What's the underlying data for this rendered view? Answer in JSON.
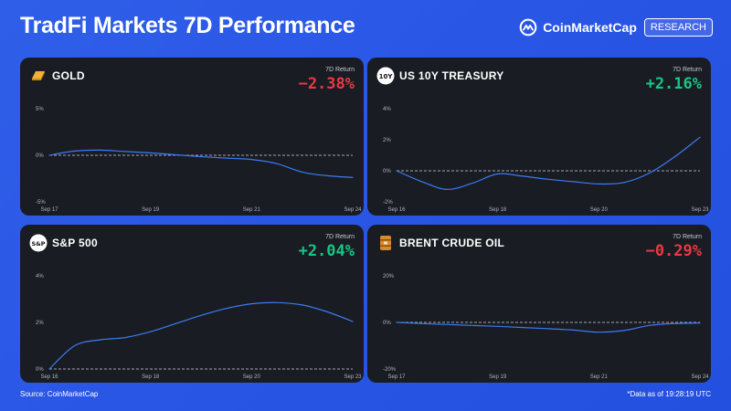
{
  "header": {
    "title": "TradFi Markets 7D Performance",
    "brand_name": "CoinMarketCap",
    "brand_badge": "RESEARCH"
  },
  "footer": {
    "source": "Source: CoinMarketCap",
    "timestamp": "*Data as of 19:28:19 UTC"
  },
  "colors": {
    "line": "#3b7cf4",
    "negative": "#ea3943",
    "positive": "#16c784",
    "panel": "#191c22"
  },
  "panels": [
    {
      "name": "GOLD",
      "icon": "gold-bar-icon",
      "return_label": "7D Return",
      "return_value": "−2.38%"
    },
    {
      "name": "US 10Y TREASURY",
      "icon": "treasury-10y-icon",
      "icon_text": "10Y",
      "return_label": "7D Return",
      "return_value": "+2.16%"
    },
    {
      "name": "S&P 500",
      "icon": "sp500-icon",
      "icon_text": "S&P",
      "return_label": "7D Return",
      "return_value": "+2.04%"
    },
    {
      "name": "BRENT CRUDE OIL",
      "icon": "oil-barrel-icon",
      "return_label": "7D Return",
      "return_value": "−0.29%"
    }
  ],
  "chart_data": [
    {
      "type": "line",
      "title": "GOLD",
      "x_ticks": [
        "Sep 17",
        "Sep 19",
        "Sep 21",
        "Sep 24"
      ],
      "x_tick_pos": [
        0,
        2,
        4,
        6
      ],
      "y_ticks": [
        "5%",
        "0%",
        "-5%"
      ],
      "y_tick_vals": [
        5,
        0,
        -5
      ],
      "ylim": [
        -5,
        5
      ],
      "x": [
        0,
        0.5,
        1,
        1.5,
        2,
        2.5,
        3,
        3.5,
        4,
        4.5,
        5,
        5.5,
        6
      ],
      "y": [
        0.0,
        0.45,
        0.55,
        0.4,
        0.25,
        0.05,
        -0.15,
        -0.3,
        -0.45,
        -0.9,
        -1.8,
        -2.2,
        -2.38
      ],
      "baseline": 0,
      "grid": false
    },
    {
      "type": "line",
      "title": "US 10Y TREASURY",
      "x_ticks": [
        "Sep 16",
        "Sep 18",
        "Sep 20",
        "Sep 23"
      ],
      "x_tick_pos": [
        0,
        2,
        4,
        6
      ],
      "y_ticks": [
        "4%",
        "2%",
        "0%",
        "-2%"
      ],
      "y_tick_vals": [
        4,
        2,
        0,
        -2
      ],
      "ylim": [
        -2,
        4
      ],
      "x": [
        0,
        0.5,
        1,
        1.5,
        2,
        2.5,
        3,
        3.5,
        4,
        4.5,
        5,
        5.5,
        6
      ],
      "y": [
        0.0,
        -0.7,
        -1.2,
        -0.8,
        -0.2,
        -0.35,
        -0.55,
        -0.7,
        -0.85,
        -0.75,
        -0.15,
        0.9,
        2.16
      ],
      "baseline": 0,
      "grid": false
    },
    {
      "type": "line",
      "title": "S&P 500",
      "x_ticks": [
        "Sep 16",
        "Sep 18",
        "Sep 20",
        "Sep 23"
      ],
      "x_tick_pos": [
        0,
        2,
        4,
        6
      ],
      "y_ticks": [
        "4%",
        "2%",
        "0%"
      ],
      "y_tick_vals": [
        4,
        2,
        0
      ],
      "ylim": [
        0,
        4
      ],
      "x": [
        0,
        0.5,
        1,
        1.5,
        2,
        2.5,
        3,
        3.5,
        4,
        4.5,
        5,
        5.5,
        6
      ],
      "y": [
        0.0,
        1.0,
        1.25,
        1.35,
        1.6,
        1.95,
        2.3,
        2.6,
        2.8,
        2.85,
        2.75,
        2.45,
        2.04
      ],
      "baseline": 0,
      "grid": false
    },
    {
      "type": "line",
      "title": "BRENT CRUDE OIL",
      "x_ticks": [
        "Sep 17",
        "Sep 19",
        "Sep 21",
        "Sep 24"
      ],
      "x_tick_pos": [
        0,
        2,
        4,
        6
      ],
      "y_ticks": [
        "20%",
        "0%",
        "-20%"
      ],
      "y_tick_vals": [
        20,
        0,
        -20
      ],
      "ylim": [
        -20,
        20
      ],
      "x": [
        0,
        0.5,
        1,
        1.5,
        2,
        2.5,
        3,
        3.5,
        4,
        4.5,
        5,
        5.5,
        6
      ],
      "y": [
        0.0,
        -0.5,
        -0.9,
        -1.3,
        -1.7,
        -2.2,
        -2.7,
        -3.3,
        -4.2,
        -3.5,
        -1.3,
        -0.5,
        -0.29
      ],
      "baseline": 0,
      "grid": false
    }
  ]
}
